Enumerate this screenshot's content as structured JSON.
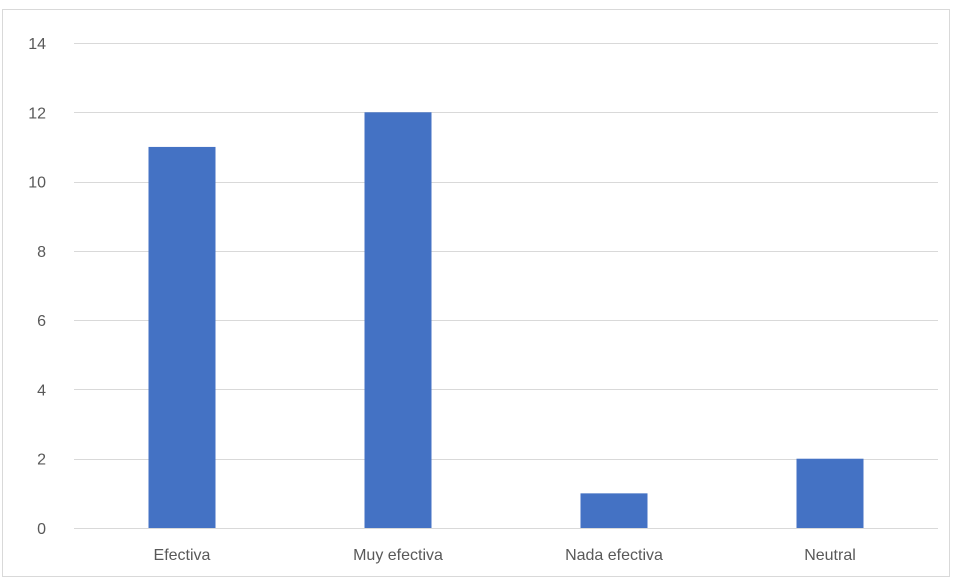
{
  "chart_data": {
    "type": "bar",
    "categories": [
      "Efectiva",
      "Muy efectiva",
      "Nada efectiva",
      "Neutral"
    ],
    "values": [
      11,
      12,
      1,
      2
    ],
    "title": "",
    "xlabel": "",
    "ylabel": "",
    "ylim": [
      0,
      14
    ],
    "yticks": [
      0,
      2,
      4,
      6,
      8,
      10,
      12,
      14
    ],
    "grid": true,
    "legend": "none",
    "bar_color": "#4472C4",
    "grid_color": "#d9d9d9"
  }
}
